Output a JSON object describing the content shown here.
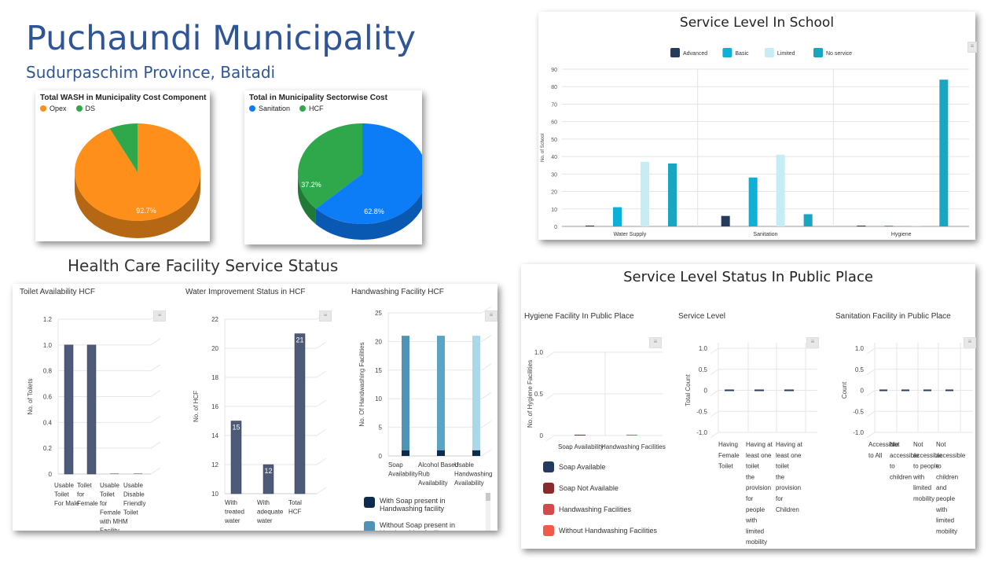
{
  "header": {
    "title": "Puchaundi Municipality",
    "subtitle": "Sudurpaschim Province, Baitadi",
    "hcf_section_title": "Health Care Facility Service Status"
  },
  "colors": {
    "title_blue": "#2f5597",
    "opex": "#fd8f1a",
    "ds": "#2ea84b",
    "sanitation": "#0d7cf7",
    "hcf": "#2ea84b",
    "advanced": "#263a5c",
    "basic": "#0eb1d6",
    "limited": "#c6ecf5",
    "no_service": "#1aa5c0",
    "hcf_bar": "#4d5a78",
    "soap_present": "#0d2b4f",
    "soap_absent": "#4f93b7",
    "soap_available": "#243a5e",
    "soap_not_available": "#8b2a2a",
    "handwashing_facilities": "#d24a4a",
    "without_handwashing": "#ef5a4d"
  },
  "chart_data": [
    {
      "id": "wash_cost_component",
      "type": "pie",
      "title": "Total WASH in Municipality Cost Component",
      "categories": [
        "Opex",
        "DS"
      ],
      "values": [
        92.7,
        7.3
      ],
      "labels": [
        "92.7%",
        ""
      ],
      "legend": "top-left"
    },
    {
      "id": "sectorwise_cost",
      "type": "pie",
      "title": "Total in Municipality Sectorwise Cost",
      "categories": [
        "Sanitation",
        "HCF"
      ],
      "values": [
        62.8,
        37.2
      ],
      "labels": [
        "62.8%",
        "37.2%"
      ],
      "legend": "top-left"
    },
    {
      "id": "school_service_level",
      "type": "bar",
      "title": "Service Level In School",
      "categories": [
        "Water Supply",
        "Sanitation",
        "Hygiene"
      ],
      "series": [
        {
          "name": "Advanced",
          "values": [
            0,
            6,
            0
          ]
        },
        {
          "name": "Basic",
          "values": [
            11,
            28,
            0
          ]
        },
        {
          "name": "Limited",
          "values": [
            37,
            41,
            0
          ]
        },
        {
          "name": "No service",
          "values": [
            36,
            7,
            84
          ]
        }
      ],
      "ylabel": "No. of School",
      "ylim": [
        0,
        90
      ],
      "yticks": [
        "0",
        "10",
        "20",
        "30",
        "40",
        "50",
        "60",
        "70",
        "80",
        "90"
      ],
      "legend": "top-center",
      "grid": true
    },
    {
      "id": "toilet_availability_hcf",
      "type": "bar",
      "title": "Toilet Availability HCF",
      "categories": [
        "Usable Toilet For Male",
        "Toilet for Female",
        "Usable Toilet for Female with MHM Facility",
        "Usable Disable Friendly Toilet"
      ],
      "values": [
        1,
        1,
        0,
        0
      ],
      "ylabel": "No. of Toilets",
      "ylim": [
        0,
        1.2
      ],
      "yticks": [
        "0",
        "0.2",
        "0.4",
        "0.6",
        "0.8",
        "1.0",
        "1.2"
      ],
      "grid": true
    },
    {
      "id": "water_improvement_hcf",
      "type": "bar",
      "title": "Water Improvement Status in HCF",
      "categories": [
        "With treated water",
        "With adequate water",
        "Total HCF"
      ],
      "values": [
        15,
        12,
        21
      ],
      "data_labels": [
        "15",
        "12",
        "21"
      ],
      "ylabel": "No. of HCF",
      "ylim": [
        10,
        22
      ],
      "yticks": [
        "10",
        "12",
        "14",
        "16",
        "18",
        "20",
        "22"
      ],
      "grid": true
    },
    {
      "id": "handwashing_facility_hcf",
      "type": "bar",
      "title": "Handwashing Facility HCF",
      "categories": [
        "Soap Availability",
        "Alcohol Based Rub Availability",
        "Usable Handwashing Availability"
      ],
      "series": [
        {
          "name": "With Soap present in Handwashing facility",
          "values": [
            1,
            1,
            1
          ]
        },
        {
          "name": "Without Soap present in Handwashing facility",
          "values": [
            20,
            20,
            20
          ]
        }
      ],
      "ylabel": "No. Of Handwashing Facilities",
      "ylim": [
        0,
        25
      ],
      "yticks": [
        "0",
        "5",
        "10",
        "15",
        "20",
        "25"
      ],
      "grid": true
    },
    {
      "id": "hygiene_public_place",
      "type": "bar",
      "title": "Hygiene Facility In Public Place",
      "categories": [
        "Soap Availability",
        "Handwashing Facilities"
      ],
      "series": [
        {
          "name": "Soap Available",
          "values": [
            0,
            0
          ]
        },
        {
          "name": "Soap Not Available",
          "values": [
            0,
            0
          ]
        },
        {
          "name": "Handwashing Facilities",
          "values": [
            0,
            0
          ]
        },
        {
          "name": "Without Handwashing Facilities",
          "values": [
            0,
            0
          ]
        }
      ],
      "ylabel": "No. of Hygiene Facilities",
      "ylim": [
        0,
        1.0
      ],
      "yticks": [
        "0",
        "0.5",
        "1.0"
      ],
      "grid": true
    },
    {
      "id": "service_level_public",
      "type": "bar",
      "title": "Service Level",
      "categories": [
        "Having Female Toilet",
        "Having at least one toilet the provision for people with limited mobility",
        "Having at least one toilet the provision for Children"
      ],
      "values": [
        0,
        0,
        0
      ],
      "ylabel": "Total Count",
      "ylim": [
        -1.0,
        1.0
      ],
      "yticks": [
        "-1.0",
        "-0.5",
        "0",
        "0.5",
        "1.0"
      ],
      "grid": true
    },
    {
      "id": "sanitation_public_place",
      "type": "bar",
      "title": "Sanitation Facility in Public Place",
      "categories": [
        "Accessible to All",
        "Not accessible to children",
        "Not accessible to people with limited mobility",
        "Not accessible to children and people with limited mobility"
      ],
      "values": [
        0,
        0,
        0,
        0
      ],
      "ylabel": "Count",
      "ylim": [
        -1.0,
        1.0
      ],
      "yticks": [
        "-1.0",
        "-0.5",
        "0",
        "0.5",
        "1.0"
      ],
      "grid": true
    }
  ],
  "public_place": {
    "title": "Service Level Status In Public Place"
  },
  "menu_icon": "hamburger-menu-icon"
}
